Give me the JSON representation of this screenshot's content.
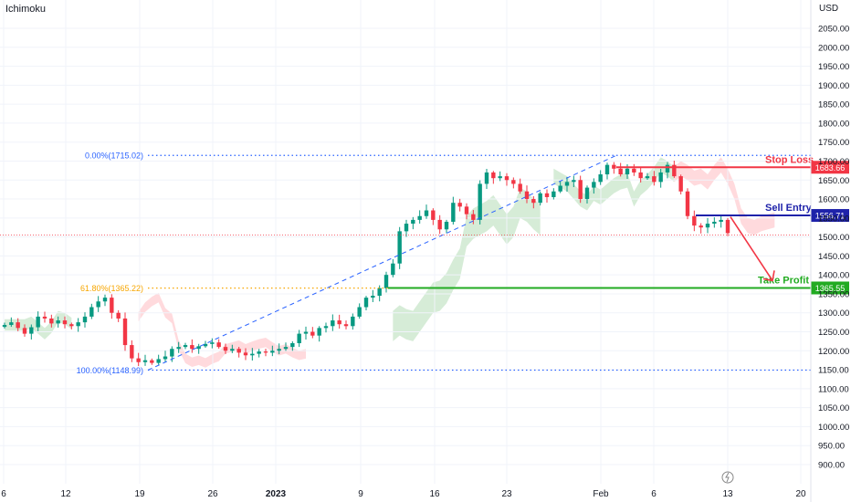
{
  "indicator_label": "Ichimoku",
  "currency": "USD",
  "chart_data": {
    "type": "candlestick",
    "ylim": [
      880,
      2085
    ],
    "y_ticks": [
      900,
      950,
      1000,
      1050,
      1100,
      1150,
      1200,
      1250,
      1300,
      1350,
      1400,
      1450,
      1500,
      1550,
      1600,
      1650,
      1700,
      1750,
      1800,
      1850,
      1900,
      1950,
      2000,
      2050
    ],
    "x_ticks": [
      "6",
      "12",
      "19",
      "26",
      "2023",
      "9",
      "16",
      "23",
      "Feb",
      "6",
      "13",
      "20"
    ],
    "closes": [
      1268,
      1275,
      1260,
      1245,
      1262,
      1290,
      1285,
      1272,
      1280,
      1270,
      1265,
      1275,
      1290,
      1315,
      1330,
      1340,
      1300,
      1285,
      1215,
      1180,
      1170,
      1175,
      1168,
      1178,
      1185,
      1205,
      1210,
      1215,
      1205,
      1212,
      1218,
      1222,
      1210,
      1200,
      1205,
      1195,
      1188,
      1192,
      1198,
      1195,
      1200,
      1205,
      1210,
      1220,
      1245,
      1250,
      1240,
      1260,
      1265,
      1280,
      1270,
      1265,
      1290,
      1315,
      1340,
      1345,
      1365,
      1400,
      1430,
      1515,
      1535,
      1545,
      1555,
      1570,
      1545,
      1520,
      1540,
      1590,
      1580,
      1560,
      1545,
      1640,
      1670,
      1655,
      1660,
      1650,
      1640,
      1620,
      1600,
      1590,
      1615,
      1605,
      1620,
      1635,
      1645,
      1650,
      1600,
      1630,
      1645,
      1665,
      1690,
      1680,
      1665,
      1680,
      1670,
      1655,
      1660,
      1645,
      1670,
      1690,
      1660,
      1620,
      1555,
      1530,
      1525,
      1535,
      1540,
      1545,
      1510
    ],
    "fibonacci": [
      {
        "label": "0.00%(1715.02)",
        "value": 1715.02
      },
      {
        "label": "61.80%(1365.22)",
        "value": 1365.22
      },
      {
        "label": "100.00%(1148.99)",
        "value": 1148.99
      }
    ],
    "last_price": 1505,
    "levels": [
      {
        "name": "Stop Loss",
        "price_label": "1683.66",
        "value": 1683.66,
        "color": "#f23645"
      },
      {
        "name": "Sell Entry",
        "price_label": "1556.71",
        "value": 1556.71,
        "color": "#1e22aa"
      },
      {
        "name": "Take Profit",
        "price_label": "1365.55",
        "value": 1365.55,
        "color": "#22ab22"
      }
    ],
    "colors": {
      "up": "#089981",
      "down": "#f23645",
      "fib_line": "#2962ff",
      "fib_mid": "#f7a600",
      "cloud_bull": "#c8e6c9",
      "cloud_bear": "#ffcdd2",
      "trend": "#2962ff",
      "arrow": "#f23645"
    }
  }
}
